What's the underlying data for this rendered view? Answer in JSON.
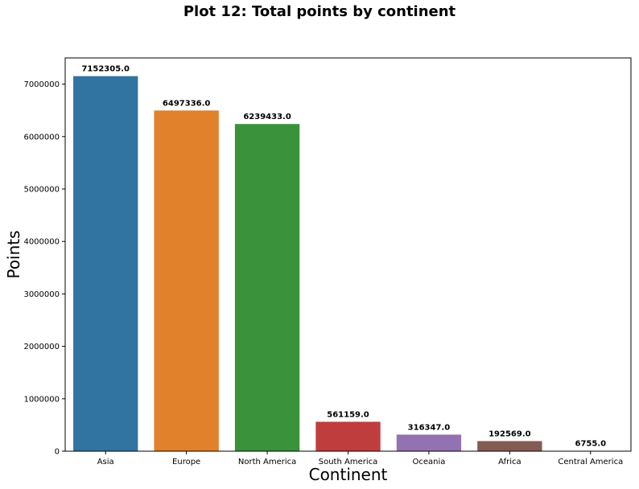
{
  "chart_data": {
    "type": "bar",
    "title": "Plot 12: Total points by continent",
    "xlabel": "Continent",
    "ylabel": "Points",
    "categories": [
      "Asia",
      "Europe",
      "North America",
      "South America",
      "Oceania",
      "Africa",
      "Central America"
    ],
    "values": [
      7152305.0,
      6497336.0,
      6239433.0,
      561159.0,
      316347.0,
      192569.0,
      6755.0
    ],
    "value_labels": [
      "7152305.0",
      "6497336.0",
      "6239433.0",
      "561159.0",
      "316347.0",
      "192569.0",
      "6755.0"
    ],
    "colors": [
      "#3274a1",
      "#e1812c",
      "#3a923a",
      "#c03d3e",
      "#9372b2",
      "#845b53",
      "#d684bd"
    ],
    "ylim": [
      0,
      7500000
    ],
    "yticks": [
      0,
      1000000,
      2000000,
      3000000,
      4000000,
      5000000,
      6000000,
      7000000
    ],
    "ytick_labels": [
      "0",
      "1000000",
      "2000000",
      "3000000",
      "4000000",
      "5000000",
      "6000000",
      "7000000"
    ],
    "grid": false,
    "legend": "none"
  }
}
